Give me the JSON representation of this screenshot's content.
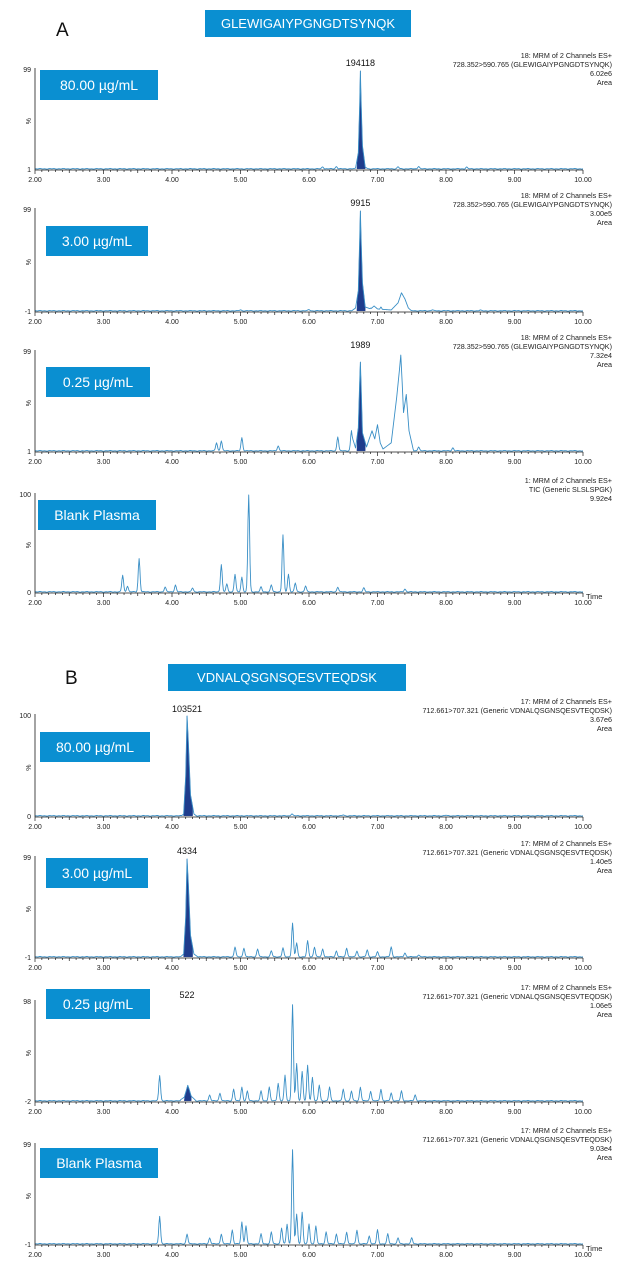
{
  "panels": [
    {
      "letter": "A",
      "peptide": "GLEWIGAIYPGNGDTSYNQK"
    },
    {
      "letter": "B",
      "peptide": "VDNALQSGNSQESVTEQDSK"
    }
  ],
  "x_tick_labels": [
    "2.00",
    "3.00",
    "4.00",
    "5.00",
    "6.00",
    "7.00",
    "8.00",
    "9.00",
    "10.00"
  ],
  "time_label": "Time",
  "colors": {
    "accent": "#0a8fd1",
    "trace": "#3a8fc6",
    "peak_fill": "#1f3c8c"
  },
  "chart_data": [
    {
      "type": "line",
      "panel": "A",
      "concentration": "80.00 µg/mL",
      "info": [
        "18: MRM of 2 Channels ES+",
        "728.352>590.765 (GLEWIGAIYPGNGDTSYNQK)",
        "6.02e6",
        "Area"
      ],
      "y_tick_labels": [
        "99",
        "%",
        "1"
      ],
      "xlim": [
        2.0,
        10.0
      ],
      "ylim": [
        1,
        100
      ],
      "peak_label": "194118",
      "peak_label_x": 6.75,
      "shaded_peak": [
        6.7,
        6.82
      ],
      "noise": [
        [
          6.2,
          2
        ],
        [
          6.4,
          2.3
        ],
        [
          7.3,
          2
        ],
        [
          7.6,
          2.5
        ],
        [
          8.3,
          1.7
        ]
      ],
      "x": [
        6.62,
        6.68,
        6.72,
        6.74,
        6.75,
        6.76,
        6.78,
        6.82,
        6.88
      ],
      "y": [
        1.2,
        3,
        18,
        65,
        99,
        70,
        25,
        4,
        1.2
      ]
    },
    {
      "type": "line",
      "panel": "A",
      "concentration": "3.00 µg/mL",
      "info": [
        "18: MRM of 2 Channels ES+",
        "728.352>590.765 (GLEWIGAIYPGNGDTSYNQK)",
        "3.00e5",
        "Area"
      ],
      "y_tick_labels": [
        "99",
        "%",
        "-1"
      ],
      "xlim": [
        2.0,
        10.0
      ],
      "ylim": [
        -1,
        100
      ],
      "peak_label": "9915",
      "peak_label_x": 6.75,
      "shaded_peak": [
        6.7,
        6.82
      ],
      "noise": [
        [
          5.0,
          1
        ],
        [
          6.0,
          1.2
        ],
        [
          6.9,
          3
        ],
        [
          7.05,
          4
        ],
        [
          7.8,
          1
        ],
        [
          8.5,
          0.6
        ]
      ],
      "x": [
        6.62,
        6.68,
        6.72,
        6.74,
        6.75,
        6.76,
        6.78,
        6.82,
        6.9,
        6.95,
        7.0,
        7.2,
        7.3,
        7.35,
        7.4,
        7.45,
        7.5
      ],
      "y": [
        0,
        3,
        20,
        70,
        99,
        72,
        28,
        4,
        2,
        5,
        2,
        1,
        8,
        18,
        12,
        3,
        0
      ]
    },
    {
      "type": "line",
      "panel": "A",
      "concentration": "0.25 µg/mL",
      "info": [
        "18: MRM of 2 Channels ES+",
        "728.352>590.765 (GLEWIGAIYPGNGDTSYNQK)",
        "7.32e4",
        "Area"
      ],
      "y_tick_labels": [
        "99",
        "%",
        "1"
      ],
      "xlim": [
        2.0,
        10.0
      ],
      "ylim": [
        1,
        100
      ],
      "peak_label": "1989",
      "peak_label_x": 6.75,
      "shaded_peak": [
        6.7,
        6.82
      ],
      "noise": [
        [
          4.65,
          8
        ],
        [
          4.72,
          10
        ],
        [
          5.02,
          13
        ],
        [
          5.55,
          5
        ],
        [
          6.42,
          14
        ],
        [
          6.62,
          20
        ],
        [
          6.88,
          12
        ],
        [
          7.6,
          4
        ],
        [
          8.1,
          3
        ]
      ],
      "x": [
        6.62,
        6.68,
        6.72,
        6.74,
        6.75,
        6.76,
        6.78,
        6.84,
        6.92,
        6.96,
        7.0,
        7.04,
        7.08,
        7.2,
        7.28,
        7.32,
        7.34,
        7.36,
        7.38,
        7.42,
        7.46,
        7.52
      ],
      "y": [
        18,
        5,
        25,
        70,
        90,
        68,
        20,
        6,
        22,
        14,
        28,
        10,
        4,
        10,
        55,
        82,
        97,
        70,
        40,
        58,
        22,
        4
      ]
    },
    {
      "type": "line",
      "panel": "A",
      "concentration": "Blank Plasma",
      "info": [
        "1: MRM of 2 Channels ES+",
        "TIC (Generic SLSLSPGK)",
        "9.92e4"
      ],
      "y_tick_labels": [
        "100",
        "%",
        "0"
      ],
      "xlim": [
        2.0,
        10.0
      ],
      "ylim": [
        0,
        100
      ],
      "noise": [
        [
          3.28,
          17
        ],
        [
          3.35,
          6
        ],
        [
          3.52,
          34
        ],
        [
          3.9,
          5
        ],
        [
          4.05,
          7
        ],
        [
          4.3,
          4
        ],
        [
          4.72,
          28
        ],
        [
          4.8,
          8
        ],
        [
          4.92,
          18
        ],
        [
          5.02,
          15
        ],
        [
          5.12,
          100
        ],
        [
          5.3,
          5
        ],
        [
          5.45,
          7
        ],
        [
          5.62,
          58
        ],
        [
          5.7,
          18
        ],
        [
          5.8,
          9
        ],
        [
          5.95,
          6
        ],
        [
          6.42,
          5
        ],
        [
          6.8,
          4
        ],
        [
          7.4,
          3
        ]
      ],
      "x": [],
      "y": []
    },
    {
      "type": "line",
      "panel": "B",
      "concentration": "80.00 µg/mL",
      "info": [
        "17: MRM of 2 Channels ES+",
        "712.661>707.321 (Generic VDNALQSGNSQESVTEQDSK)",
        "3.67e6",
        "Area"
      ],
      "y_tick_labels": [
        "100",
        "%",
        "0"
      ],
      "xlim": [
        2.0,
        10.0
      ],
      "ylim": [
        0,
        100
      ],
      "peak_label": "103521",
      "peak_label_x": 4.22,
      "shaded_peak": [
        4.17,
        4.3
      ],
      "noise": [
        [
          5.75,
          2
        ],
        [
          6.5,
          0.8
        ],
        [
          8.0,
          0.5
        ]
      ],
      "x": [
        4.12,
        4.17,
        4.2,
        4.22,
        4.24,
        4.27,
        4.32,
        4.38
      ],
      "y": [
        0,
        3,
        40,
        100,
        72,
        22,
        3,
        0
      ]
    },
    {
      "type": "line",
      "panel": "B",
      "concentration": "3.00 µg/mL",
      "info": [
        "17: MRM of 2 Channels ES+",
        "712.661>707.321 (Generic VDNALQSGNSQESVTEQDSK)",
        "1.40e5",
        "Area"
      ],
      "y_tick_labels": [
        "99",
        "%",
        "-1"
      ],
      "xlim": [
        2.0,
        10.0
      ],
      "ylim": [
        -1,
        100
      ],
      "peak_label": "4334",
      "peak_label_x": 4.22,
      "shaded_peak": [
        4.17,
        4.3
      ],
      "noise": [
        [
          4.92,
          10
        ],
        [
          5.05,
          9
        ],
        [
          5.25,
          8
        ],
        [
          5.45,
          6
        ],
        [
          5.62,
          9
        ],
        [
          5.76,
          34
        ],
        [
          5.82,
          14
        ],
        [
          5.98,
          16
        ],
        [
          6.08,
          10
        ],
        [
          6.2,
          8
        ],
        [
          6.4,
          6
        ],
        [
          6.55,
          9
        ],
        [
          6.7,
          6
        ],
        [
          6.85,
          7
        ],
        [
          7.0,
          5
        ],
        [
          7.2,
          10
        ],
        [
          7.4,
          4
        ],
        [
          7.6,
          2
        ]
      ],
      "x": [
        4.12,
        4.17,
        4.2,
        4.22,
        4.24,
        4.27,
        4.32,
        4.38
      ],
      "y": [
        0,
        3,
        40,
        99,
        72,
        22,
        3,
        0
      ]
    },
    {
      "type": "line",
      "panel": "B",
      "concentration": "0.25 µg/mL",
      "info": [
        "17: MRM of 2 Channels ES+",
        "712.661>707.321 (Generic VDNALQSGNSQESVTEQDSK)",
        "1.06e5",
        "Area"
      ],
      "y_tick_labels": [
        "98",
        "%",
        "-2"
      ],
      "xlim": [
        2.0,
        10.0
      ],
      "ylim": [
        -2,
        100
      ],
      "peak_label": "522",
      "peak_label_x": 4.22,
      "shaded_peak": [
        4.18,
        4.28
      ],
      "noise": [
        [
          3.82,
          26
        ],
        [
          4.55,
          6
        ],
        [
          4.7,
          8
        ],
        [
          4.9,
          12
        ],
        [
          5.02,
          14
        ],
        [
          5.1,
          10
        ],
        [
          5.3,
          10
        ],
        [
          5.42,
          14
        ],
        [
          5.55,
          18
        ],
        [
          5.65,
          26
        ],
        [
          5.76,
          98
        ],
        [
          5.82,
          38
        ],
        [
          5.9,
          30
        ],
        [
          5.98,
          36
        ],
        [
          6.05,
          24
        ],
        [
          6.15,
          16
        ],
        [
          6.3,
          14
        ],
        [
          6.5,
          12
        ],
        [
          6.62,
          10
        ],
        [
          6.75,
          14
        ],
        [
          6.9,
          10
        ],
        [
          7.05,
          12
        ],
        [
          7.2,
          8
        ],
        [
          7.35,
          10
        ],
        [
          7.55,
          6
        ]
      ],
      "x": [
        4.12,
        4.18,
        4.21,
        4.23,
        4.25,
        4.28,
        4.34
      ],
      "y": [
        0,
        3,
        10,
        15,
        11,
        4,
        0
      ]
    },
    {
      "type": "line",
      "panel": "B",
      "concentration": "Blank Plasma",
      "info": [
        "17: MRM of 2 Channels ES+",
        "712.661>707.321 (Generic VDNALQSGNSQESVTEQDSK)",
        "9.03e4",
        "Area"
      ],
      "y_tick_labels": [
        "99",
        "%",
        "-1"
      ],
      "xlim": [
        2.0,
        10.0
      ],
      "ylim": [
        -1,
        100
      ],
      "noise": [
        [
          3.82,
          28
        ],
        [
          4.22,
          10
        ],
        [
          4.55,
          6
        ],
        [
          4.72,
          10
        ],
        [
          4.88,
          14
        ],
        [
          5.02,
          22
        ],
        [
          5.08,
          18
        ],
        [
          5.3,
          10
        ],
        [
          5.45,
          12
        ],
        [
          5.6,
          16
        ],
        [
          5.68,
          20
        ],
        [
          5.76,
          95
        ],
        [
          5.82,
          30
        ],
        [
          5.9,
          32
        ],
        [
          6.0,
          20
        ],
        [
          6.1,
          18
        ],
        [
          6.25,
          12
        ],
        [
          6.4,
          10
        ],
        [
          6.55,
          12
        ],
        [
          6.7,
          14
        ],
        [
          6.88,
          8
        ],
        [
          7.0,
          14
        ],
        [
          7.15,
          10
        ],
        [
          7.3,
          6
        ],
        [
          7.5,
          6
        ]
      ],
      "x": [],
      "y": []
    }
  ]
}
